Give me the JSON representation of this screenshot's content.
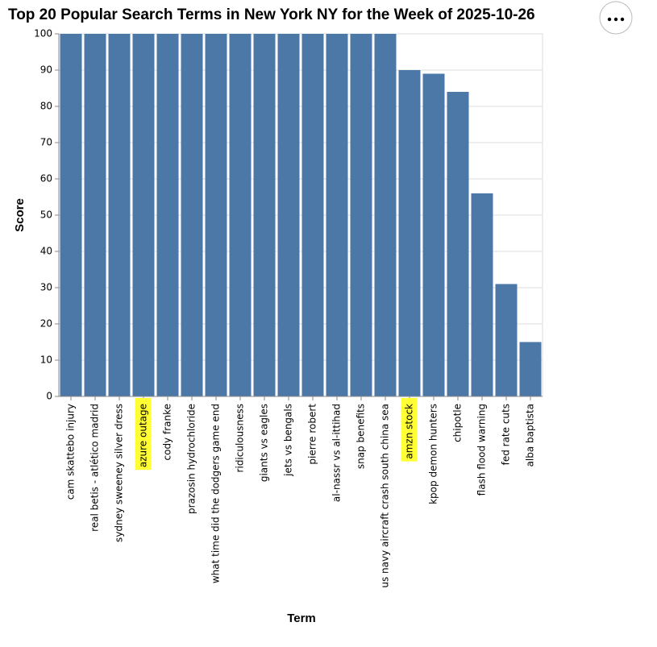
{
  "chart_data": {
    "type": "bar",
    "title": "Top 20 Popular Search Terms in New York NY for the Week of 2025-10-26",
    "x_label": "Term",
    "y_label": "Score",
    "categories": [
      "cam skattebo injury",
      "real betis - atlético madrid",
      "sydney sweeney silver dress",
      "azure outage",
      "cody franke",
      "prazosin hydrochloride",
      "what time did the dodgers game end",
      "ridiculousness",
      "giants vs eagles",
      "jets vs bengals",
      "pierre robert",
      "al-nassr vs al-ittihad",
      "snap benefits",
      "us navy aircraft crash south china sea",
      "amzn stock",
      "kpop demon hunters",
      "chipotle",
      "flash flood warning",
      "fed rate cuts",
      "alba baptista"
    ],
    "values": [
      100,
      100,
      100,
      100,
      100,
      100,
      100,
      100,
      100,
      100,
      100,
      100,
      100,
      100,
      90,
      89,
      84,
      56,
      31,
      15
    ],
    "color": "#4c78a8",
    "highlighted_categories": [
      3,
      14
    ],
    "highlight_color": "#ffff33",
    "ylim": [
      0,
      100
    ],
    "yticks": [
      0,
      10,
      20,
      30,
      40,
      50,
      60,
      70,
      80,
      90,
      100
    ],
    "grid": true
  }
}
